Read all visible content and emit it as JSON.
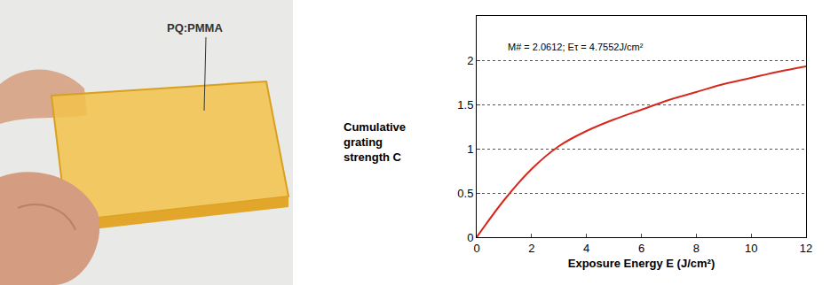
{
  "photo": {
    "label": "PQ:PMMA"
  },
  "chart_data": {
    "type": "line",
    "x_label": "Exposure Energy E (J/cm²)",
    "y_label": "Cumulative grating strength C",
    "annotation": "M# = 2.0612; Eτ = 4.7552J/cm²",
    "x": [
      0,
      1,
      2,
      3,
      4,
      5,
      6,
      7,
      8,
      9,
      10,
      11,
      12
    ],
    "values": [
      0,
      0.42,
      0.77,
      1.03,
      1.2,
      1.33,
      1.44,
      1.55,
      1.64,
      1.73,
      1.8,
      1.87,
      1.93
    ],
    "color": "#d42a1e",
    "xlim": [
      0,
      12
    ],
    "xticks": [
      0,
      2,
      4,
      6,
      8,
      10,
      12
    ],
    "ylim": [
      0,
      2.5
    ],
    "yticks": [
      0,
      0.5,
      1,
      1.5,
      2
    ],
    "grid": true
  }
}
